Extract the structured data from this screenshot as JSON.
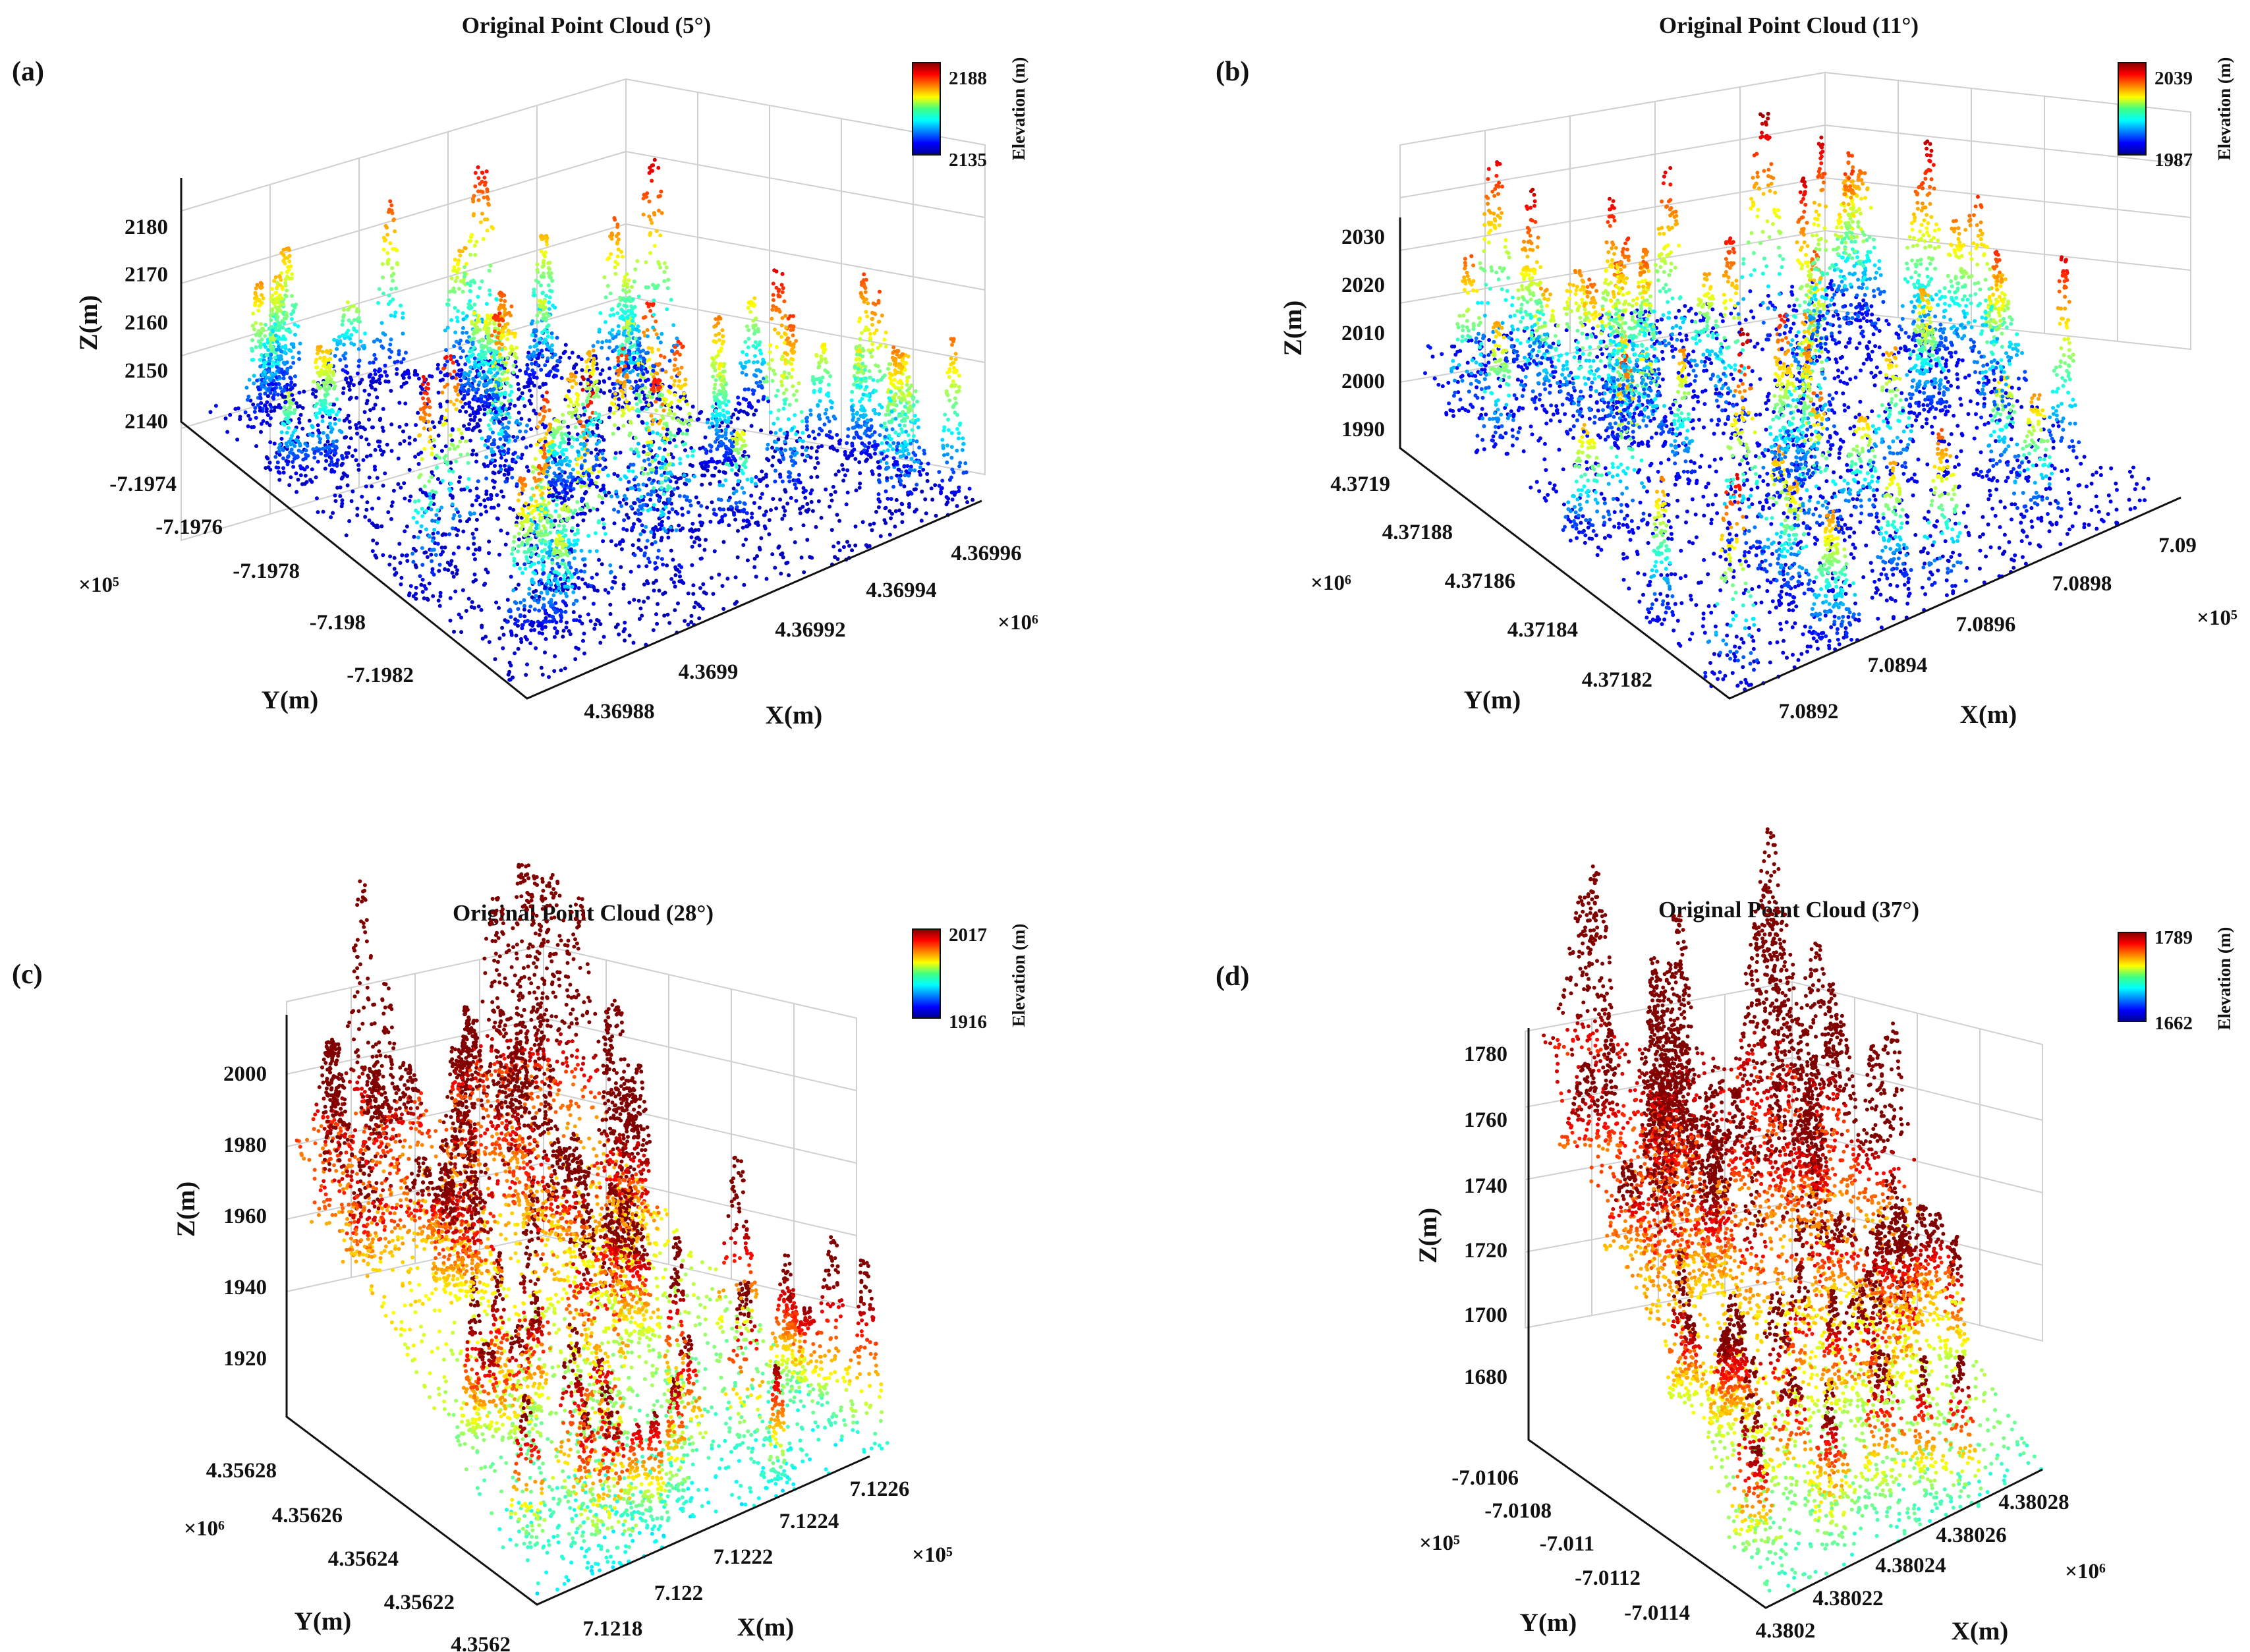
{
  "chart_data": [
    {
      "type": "scatter",
      "panel": "(a)",
      "title": "Original Point Cloud (5°)",
      "xlabel": "X(m)",
      "ylabel": "Y(m)",
      "zlabel": "Z(m)",
      "x_ticks": [
        "4.36988",
        "4.3699",
        "4.36992",
        "4.36994",
        "4.36996"
      ],
      "x_multiplier": "×10⁶",
      "y_ticks": [
        "-7.1974",
        "-7.1976",
        "-7.1978",
        "-7.198",
        "-7.1982"
      ],
      "y_multiplier": "×10⁵",
      "z_ticks": [
        "2180",
        "2170",
        "2160",
        "2150",
        "2140"
      ],
      "z_range": [
        2135,
        2188
      ],
      "colorbar": {
        "label": "Elevation (m)",
        "min": "2135",
        "max": "2188"
      },
      "ground_level": 0.12
    },
    {
      "type": "scatter",
      "panel": "(b)",
      "title": "Original Point Cloud (11°)",
      "xlabel": "X(m)",
      "ylabel": "Y(m)",
      "zlabel": "Z(m)",
      "x_ticks": [
        "7.0892",
        "7.0894",
        "7.0896",
        "7.0898",
        "7.09"
      ],
      "x_multiplier": "×10⁵",
      "y_ticks": [
        "4.3719",
        "4.37188",
        "4.37186",
        "4.37184",
        "4.37182"
      ],
      "y_multiplier": "×10⁶",
      "z_ticks": [
        "2030",
        "2020",
        "2010",
        "2000",
        "1990"
      ],
      "z_range": [
        1987,
        2039
      ],
      "colorbar": {
        "label": "Elevation (m)",
        "min": "1987",
        "max": "2039"
      },
      "ground_level": 0.2
    },
    {
      "type": "scatter",
      "panel": "(c)",
      "title": "Original Point Cloud (28°)",
      "xlabel": "X(m)",
      "ylabel": "Y(m)",
      "zlabel": "Z(m)",
      "x_ticks": [
        "7.1218",
        "7.122",
        "7.1222",
        "7.1224",
        "7.1226"
      ],
      "x_multiplier": "×10⁵",
      "y_ticks": [
        "4.35628",
        "4.35626",
        "4.35624",
        "4.35622",
        "4.3562"
      ],
      "y_multiplier": "×10⁶",
      "z_ticks": [
        "2000",
        "1980",
        "1960",
        "1940",
        "1920"
      ],
      "z_range": [
        1916,
        2017
      ],
      "colorbar": {
        "label": "Elevation (m)",
        "min": "1916",
        "max": "2017"
      },
      "ground_level": 0.55
    },
    {
      "type": "scatter",
      "panel": "(d)",
      "title": "Original Point Cloud (37°)",
      "xlabel": "X(m)",
      "ylabel": "Y(m)",
      "zlabel": "Z(m)",
      "x_ticks": [
        "4.3802",
        "4.38022",
        "4.38024",
        "4.38026",
        "4.38028"
      ],
      "x_multiplier": "×10⁶",
      "y_ticks": [
        "-7.0106",
        "-7.0108",
        "-7.011",
        "-7.0112",
        "-7.0114"
      ],
      "y_multiplier": "×10⁵",
      "z_ticks": [
        "1780",
        "1760",
        "1740",
        "1720",
        "1700",
        "1680"
      ],
      "z_range": [
        1662,
        1789
      ],
      "colorbar": {
        "label": "Elevation (m)",
        "min": "1662",
        "max": "1789"
      },
      "ground_level": 0.65
    }
  ]
}
